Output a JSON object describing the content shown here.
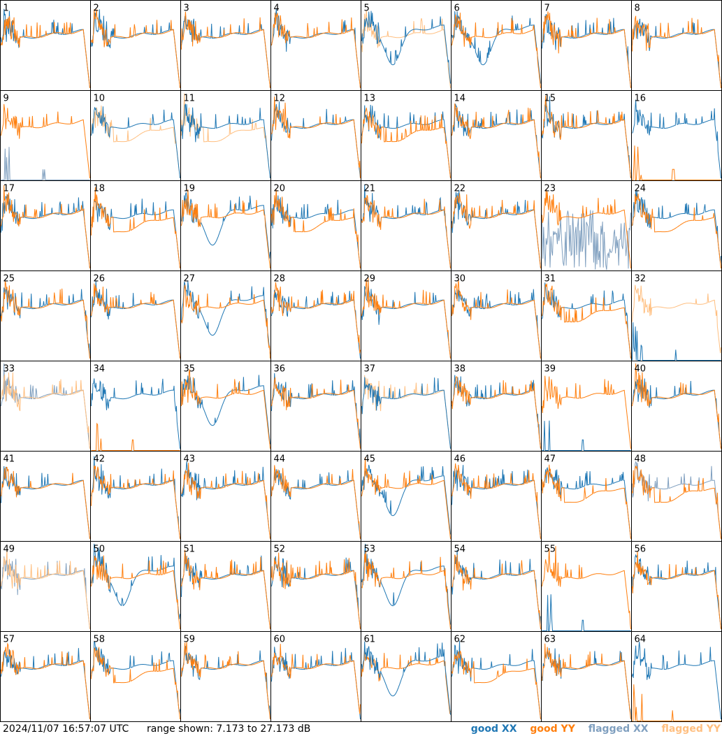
{
  "footer": {
    "timestamp": "2024/11/07 16:57:07 UTC",
    "range_text": "range shown: 7.173 to 27.173 dB"
  },
  "legend": [
    {
      "label": "good XX",
      "color": "#1f77b4"
    },
    {
      "label": "good YY",
      "color": "#ff7f0e"
    },
    {
      "label": "flagged XX",
      "color": "#7f9fbf"
    },
    {
      "label": "flagged YY",
      "color": "#ffbf80"
    }
  ],
  "chart_data": {
    "type": "line",
    "ylim": [
      7.173,
      27.173
    ],
    "grid": false,
    "legend_position": "bottom-right",
    "tiles": [
      {
        "label": "1",
        "xx": "good",
        "yy": "good",
        "curve": "normal",
        "lead": "yy"
      },
      {
        "label": "2",
        "xx": "good",
        "yy": "good",
        "curve": "normal",
        "lead": "yy"
      },
      {
        "label": "3",
        "xx": "good",
        "yy": "good",
        "curve": "normal",
        "lead": "yy"
      },
      {
        "label": "4",
        "xx": "good",
        "yy": "good",
        "curve": "normal",
        "lead": "yy"
      },
      {
        "label": "5",
        "xx": "good",
        "yy": "flagged",
        "curve": "deep",
        "lead": "xx"
      },
      {
        "label": "6",
        "xx": "good",
        "yy": "good",
        "curve": "deep",
        "lead": "yy"
      },
      {
        "label": "7",
        "xx": "good",
        "yy": "good",
        "curve": "normal",
        "lead": "yy"
      },
      {
        "label": "8",
        "xx": "good",
        "yy": "good",
        "curve": "normal",
        "lead": "yy"
      },
      {
        "label": "9",
        "xx": "flagged",
        "yy": "good",
        "curve": "dead_xx",
        "lead": "yy"
      },
      {
        "label": "10",
        "xx": "good",
        "yy": "flagged",
        "curve": "split",
        "lead": "xx"
      },
      {
        "label": "11",
        "xx": "good",
        "yy": "flagged",
        "curve": "split",
        "lead": "xx"
      },
      {
        "label": "12",
        "xx": "good",
        "yy": "good",
        "curve": "normal",
        "lead": "yy"
      },
      {
        "label": "13",
        "xx": "good",
        "yy": "good",
        "curve": "split",
        "lead": "yy"
      },
      {
        "label": "14",
        "xx": "good",
        "yy": "good",
        "curve": "normal",
        "lead": "yy"
      },
      {
        "label": "15",
        "xx": "good",
        "yy": "good",
        "curve": "normal",
        "lead": "yy"
      },
      {
        "label": "16",
        "xx": "good",
        "yy": "good",
        "curve": "dead_yy",
        "lead": "xx"
      },
      {
        "label": "17",
        "xx": "good",
        "yy": "good",
        "curve": "normal",
        "lead": "yy"
      },
      {
        "label": "18",
        "xx": "good",
        "yy": "good",
        "curve": "split",
        "lead": "yy"
      },
      {
        "label": "19",
        "xx": "good",
        "yy": "good",
        "curve": "deep",
        "lead": "yy"
      },
      {
        "label": "20",
        "xx": "good",
        "yy": "good",
        "curve": "split",
        "lead": "yy"
      },
      {
        "label": "21",
        "xx": "good",
        "yy": "good",
        "curve": "normal",
        "lead": "yy"
      },
      {
        "label": "22",
        "xx": "good",
        "yy": "good",
        "curve": "normal",
        "lead": "yy"
      },
      {
        "label": "23",
        "xx": "flagged",
        "yy": "good",
        "curve": "noisy_xx",
        "lead": "yy"
      },
      {
        "label": "24",
        "xx": "good",
        "yy": "good",
        "curve": "split",
        "lead": "yy"
      },
      {
        "label": "25",
        "xx": "good",
        "yy": "good",
        "curve": "normal",
        "lead": "yy"
      },
      {
        "label": "26",
        "xx": "good",
        "yy": "good",
        "curve": "normal",
        "lead": "yy"
      },
      {
        "label": "27",
        "xx": "good",
        "yy": "good",
        "curve": "deep",
        "lead": "yy"
      },
      {
        "label": "28",
        "xx": "good",
        "yy": "good",
        "curve": "normal",
        "lead": "yy"
      },
      {
        "label": "29",
        "xx": "good",
        "yy": "good",
        "curve": "normal",
        "lead": "yy"
      },
      {
        "label": "30",
        "xx": "good",
        "yy": "good",
        "curve": "normal",
        "lead": "yy"
      },
      {
        "label": "31",
        "xx": "good",
        "yy": "good",
        "curve": "split",
        "lead": "yy"
      },
      {
        "label": "32",
        "xx": "good",
        "yy": "flagged",
        "curve": "dead_xx",
        "lead": "yy"
      },
      {
        "label": "33",
        "xx": "flagged",
        "yy": "flagged",
        "curve": "normal",
        "lead": "yy"
      },
      {
        "label": "34",
        "xx": "good",
        "yy": "good",
        "curve": "dead_yy",
        "lead": "xx"
      },
      {
        "label": "35",
        "xx": "good",
        "yy": "good",
        "curve": "deep",
        "lead": "yy"
      },
      {
        "label": "36",
        "xx": "good",
        "yy": "good",
        "curve": "normal",
        "lead": "yy"
      },
      {
        "label": "37",
        "xx": "good",
        "yy": "flagged",
        "curve": "normal",
        "lead": "xx"
      },
      {
        "label": "38",
        "xx": "good",
        "yy": "good",
        "curve": "normal",
        "lead": "yy"
      },
      {
        "label": "39",
        "xx": "good",
        "yy": "good",
        "curve": "dead_xx",
        "lead": "yy"
      },
      {
        "label": "40",
        "xx": "good",
        "yy": "good",
        "curve": "normal",
        "lead": "yy"
      },
      {
        "label": "41",
        "xx": "good",
        "yy": "good",
        "curve": "normal",
        "lead": "yy"
      },
      {
        "label": "42",
        "xx": "good",
        "yy": "good",
        "curve": "normal",
        "lead": "yy"
      },
      {
        "label": "43",
        "xx": "good",
        "yy": "good",
        "curve": "normal",
        "lead": "yy"
      },
      {
        "label": "44",
        "xx": "good",
        "yy": "good",
        "curve": "normal",
        "lead": "yy"
      },
      {
        "label": "45",
        "xx": "good",
        "yy": "good",
        "curve": "deep",
        "lead": "yy"
      },
      {
        "label": "46",
        "xx": "good",
        "yy": "good",
        "curve": "normal",
        "lead": "yy"
      },
      {
        "label": "47",
        "xx": "good",
        "yy": "good",
        "curve": "split",
        "lead": "yy"
      },
      {
        "label": "48",
        "xx": "flagged",
        "yy": "good",
        "curve": "split",
        "lead": "yy"
      },
      {
        "label": "49",
        "xx": "flagged",
        "yy": "flagged",
        "curve": "normal",
        "lead": "yy"
      },
      {
        "label": "50",
        "xx": "good",
        "yy": "good",
        "curve": "deep",
        "lead": "yy"
      },
      {
        "label": "51",
        "xx": "good",
        "yy": "good",
        "curve": "normal",
        "lead": "yy"
      },
      {
        "label": "52",
        "xx": "good",
        "yy": "good",
        "curve": "normal",
        "lead": "yy"
      },
      {
        "label": "53",
        "xx": "good",
        "yy": "good",
        "curve": "deep",
        "lead": "yy"
      },
      {
        "label": "54",
        "xx": "good",
        "yy": "good",
        "curve": "normal",
        "lead": "yy"
      },
      {
        "label": "55",
        "xx": "good",
        "yy": "good",
        "curve": "dead_xx",
        "lead": "yy"
      },
      {
        "label": "56",
        "xx": "good",
        "yy": "good",
        "curve": "normal",
        "lead": "yy"
      },
      {
        "label": "57",
        "xx": "good",
        "yy": "good",
        "curve": "normal",
        "lead": "yy"
      },
      {
        "label": "58",
        "xx": "good",
        "yy": "good",
        "curve": "split",
        "lead": "yy"
      },
      {
        "label": "59",
        "xx": "good",
        "yy": "good",
        "curve": "normal",
        "lead": "yy"
      },
      {
        "label": "60",
        "xx": "good",
        "yy": "good",
        "curve": "normal",
        "lead": "yy"
      },
      {
        "label": "61",
        "xx": "good",
        "yy": "good",
        "curve": "deep",
        "lead": "xx"
      },
      {
        "label": "62",
        "xx": "good",
        "yy": "good",
        "curve": "split",
        "lead": "yy"
      },
      {
        "label": "63",
        "xx": "good",
        "yy": "good",
        "curve": "normal",
        "lead": "yy"
      },
      {
        "label": "64",
        "xx": "good",
        "yy": "good",
        "curve": "dead_yy",
        "lead": "xx"
      }
    ]
  }
}
